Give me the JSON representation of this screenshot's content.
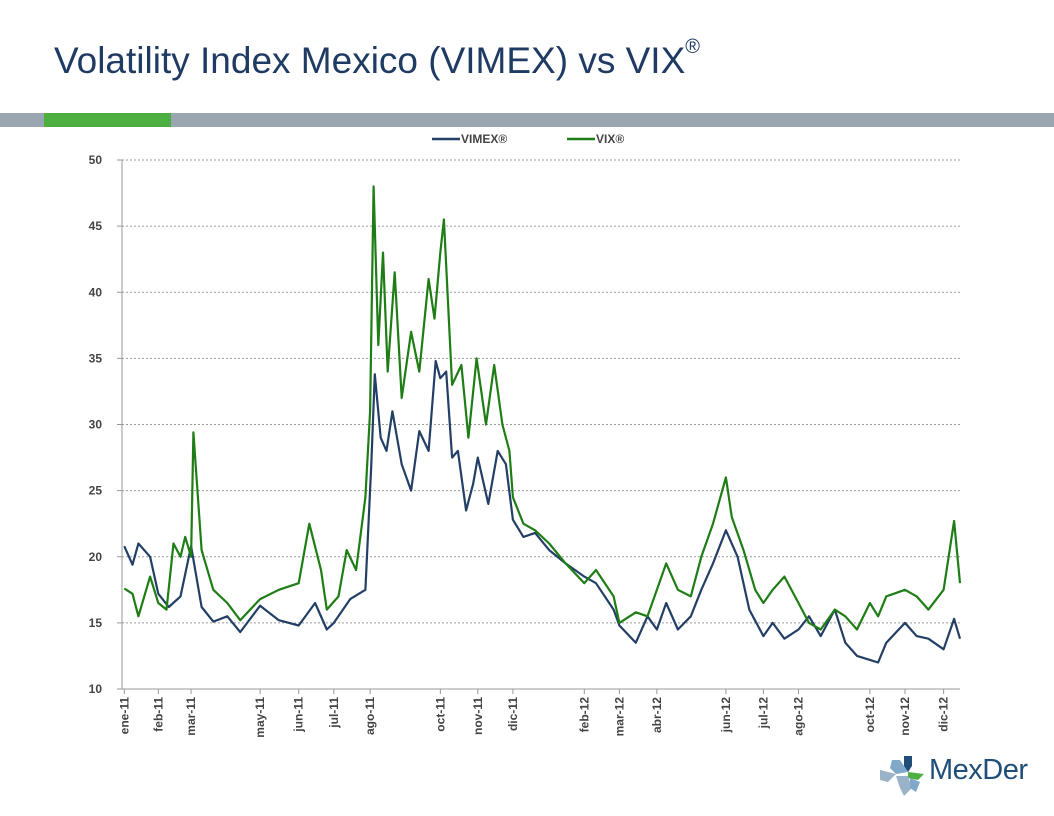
{
  "slide": {
    "title_main": "Volatility Index Mexico (VIMEX) vs VIX",
    "title_sup": "®",
    "logo_text": "MexDer"
  },
  "colors": {
    "title": "#1f3b63",
    "band": "#9aa7b2",
    "band_accent": "#4caf3f",
    "vimex": "#243f66",
    "vix": "#1e7d14"
  },
  "chart_data": {
    "type": "line",
    "title": "",
    "xlabel": "",
    "ylabel": "",
    "ylim": [
      10,
      50
    ],
    "yticks": [
      10,
      15,
      20,
      25,
      30,
      35,
      40,
      45,
      50
    ],
    "grid": true,
    "legend_position": "top-center",
    "xlim": [
      "2011-01",
      "2012-12"
    ],
    "x_tick_labels": [
      "ene-11",
      "feb-11",
      "mar-11",
      "may-11",
      "jun-11",
      "jul-11",
      "ago-11",
      "oct-11",
      "nov-11",
      "dic-11",
      "feb-12",
      "mar-12",
      "abr-12",
      "jun-12",
      "jul-12",
      "ago-12",
      "oct-12",
      "nov-12",
      "dic-12"
    ],
    "x_tick_dates": [
      "2011-01-03",
      "2011-02-01",
      "2011-03-01",
      "2011-04-29",
      "2011-06-01",
      "2011-07-01",
      "2011-08-01",
      "2011-09-30",
      "2011-11-01",
      "2011-12-01",
      "2012-01-31",
      "2012-03-01",
      "2012-04-02",
      "2012-05-31",
      "2012-07-02",
      "2012-08-01",
      "2012-10-01",
      "2012-10-31",
      "2012-12-03"
    ],
    "series": [
      {
        "name": "VIMEX®",
        "color": "#243f66",
        "points": [
          [
            "2011-01-03",
            20.8
          ],
          [
            "2011-01-10",
            19.4
          ],
          [
            "2011-01-15",
            21.0
          ],
          [
            "2011-01-25",
            20.0
          ],
          [
            "2011-02-01",
            17.2
          ],
          [
            "2011-02-10",
            16.2
          ],
          [
            "2011-02-20",
            17.0
          ],
          [
            "2011-03-01",
            20.8
          ],
          [
            "2011-03-10",
            16.2
          ],
          [
            "2011-03-20",
            15.1
          ],
          [
            "2011-04-01",
            15.5
          ],
          [
            "2011-04-12",
            14.3
          ],
          [
            "2011-04-29",
            16.3
          ],
          [
            "2011-05-15",
            15.2
          ],
          [
            "2011-06-01",
            14.8
          ],
          [
            "2011-06-15",
            16.5
          ],
          [
            "2011-06-25",
            14.5
          ],
          [
            "2011-07-01",
            15.0
          ],
          [
            "2011-07-15",
            16.8
          ],
          [
            "2011-07-28",
            17.5
          ],
          [
            "2011-08-02",
            27.0
          ],
          [
            "2011-08-05",
            33.8
          ],
          [
            "2011-08-10",
            29.0
          ],
          [
            "2011-08-15",
            28.0
          ],
          [
            "2011-08-20",
            31.0
          ],
          [
            "2011-08-28",
            27.0
          ],
          [
            "2011-09-05",
            25.0
          ],
          [
            "2011-09-12",
            29.5
          ],
          [
            "2011-09-20",
            28.0
          ],
          [
            "2011-09-26",
            34.8
          ],
          [
            "2011-09-30",
            33.5
          ],
          [
            "2011-10-05",
            34.0
          ],
          [
            "2011-10-10",
            27.5
          ],
          [
            "2011-10-15",
            28.0
          ],
          [
            "2011-10-22",
            23.5
          ],
          [
            "2011-10-28",
            25.5
          ],
          [
            "2011-11-01",
            27.5
          ],
          [
            "2011-11-10",
            24.0
          ],
          [
            "2011-11-18",
            28.0
          ],
          [
            "2011-11-25",
            27.0
          ],
          [
            "2011-12-01",
            22.8
          ],
          [
            "2011-12-10",
            21.5
          ],
          [
            "2011-12-20",
            21.8
          ],
          [
            "2012-01-01",
            20.5
          ],
          [
            "2012-01-15",
            19.5
          ],
          [
            "2012-01-31",
            18.5
          ],
          [
            "2012-02-10",
            18.0
          ],
          [
            "2012-02-25",
            16.0
          ],
          [
            "2012-03-01",
            14.8
          ],
          [
            "2012-03-15",
            13.5
          ],
          [
            "2012-03-25",
            15.5
          ],
          [
            "2012-04-02",
            14.5
          ],
          [
            "2012-04-10",
            16.5
          ],
          [
            "2012-04-20",
            14.5
          ],
          [
            "2012-05-01",
            15.5
          ],
          [
            "2012-05-10",
            17.5
          ],
          [
            "2012-05-20",
            19.5
          ],
          [
            "2012-05-31",
            22.0
          ],
          [
            "2012-06-10",
            20.0
          ],
          [
            "2012-06-20",
            16.0
          ],
          [
            "2012-07-02",
            14.0
          ],
          [
            "2012-07-10",
            15.0
          ],
          [
            "2012-07-20",
            13.8
          ],
          [
            "2012-08-01",
            14.5
          ],
          [
            "2012-08-10",
            15.5
          ],
          [
            "2012-08-20",
            14.0
          ],
          [
            "2012-09-01",
            16.0
          ],
          [
            "2012-09-10",
            13.5
          ],
          [
            "2012-09-20",
            12.5
          ],
          [
            "2012-10-01",
            12.2
          ],
          [
            "2012-10-08",
            12.0
          ],
          [
            "2012-10-15",
            13.5
          ],
          [
            "2012-10-31",
            15.0
          ],
          [
            "2012-11-10",
            14.0
          ],
          [
            "2012-11-20",
            13.8
          ],
          [
            "2012-12-03",
            13.0
          ],
          [
            "2012-12-12",
            15.3
          ],
          [
            "2012-12-17",
            13.8
          ]
        ]
      },
      {
        "name": "VIX®",
        "color": "#1e7d14",
        "points": [
          [
            "2011-01-03",
            17.6
          ],
          [
            "2011-01-10",
            17.2
          ],
          [
            "2011-01-15",
            15.5
          ],
          [
            "2011-01-25",
            18.5
          ],
          [
            "2011-02-01",
            16.5
          ],
          [
            "2011-02-08",
            16.0
          ],
          [
            "2011-02-14",
            21.0
          ],
          [
            "2011-02-20",
            20.0
          ],
          [
            "2011-02-24",
            21.5
          ],
          [
            "2011-03-01",
            20.0
          ],
          [
            "2011-03-03",
            29.4
          ],
          [
            "2011-03-10",
            20.5
          ],
          [
            "2011-03-20",
            17.5
          ],
          [
            "2011-04-01",
            16.5
          ],
          [
            "2011-04-12",
            15.2
          ],
          [
            "2011-04-29",
            16.8
          ],
          [
            "2011-05-15",
            17.5
          ],
          [
            "2011-06-01",
            18.0
          ],
          [
            "2011-06-10",
            22.5
          ],
          [
            "2011-06-20",
            19.0
          ],
          [
            "2011-06-25",
            16.0
          ],
          [
            "2011-07-05",
            17.0
          ],
          [
            "2011-07-12",
            20.5
          ],
          [
            "2011-07-20",
            19.0
          ],
          [
            "2011-07-28",
            24.5
          ],
          [
            "2011-08-01",
            31.0
          ],
          [
            "2011-08-04",
            48.0
          ],
          [
            "2011-08-08",
            36.0
          ],
          [
            "2011-08-12",
            43.0
          ],
          [
            "2011-08-16",
            34.0
          ],
          [
            "2011-08-22",
            41.5
          ],
          [
            "2011-08-28",
            32.0
          ],
          [
            "2011-09-05",
            37.0
          ],
          [
            "2011-09-12",
            34.0
          ],
          [
            "2011-09-20",
            41.0
          ],
          [
            "2011-09-25",
            38.0
          ],
          [
            "2011-09-30",
            43.0
          ],
          [
            "2011-10-03",
            45.5
          ],
          [
            "2011-10-10",
            33.0
          ],
          [
            "2011-10-18",
            34.5
          ],
          [
            "2011-10-24",
            29.0
          ],
          [
            "2011-10-31",
            35.0
          ],
          [
            "2011-11-08",
            30.0
          ],
          [
            "2011-11-15",
            34.5
          ],
          [
            "2011-11-22",
            30.0
          ],
          [
            "2011-11-28",
            28.0
          ],
          [
            "2011-12-01",
            24.5
          ],
          [
            "2011-12-10",
            22.5
          ],
          [
            "2011-12-20",
            22.0
          ],
          [
            "2012-01-01",
            21.0
          ],
          [
            "2012-01-15",
            19.5
          ],
          [
            "2012-01-31",
            18.0
          ],
          [
            "2012-02-10",
            19.0
          ],
          [
            "2012-02-25",
            17.0
          ],
          [
            "2012-03-01",
            15.0
          ],
          [
            "2012-03-15",
            15.8
          ],
          [
            "2012-03-25",
            15.5
          ],
          [
            "2012-04-02",
            17.5
          ],
          [
            "2012-04-10",
            19.5
          ],
          [
            "2012-04-20",
            17.5
          ],
          [
            "2012-05-01",
            17.0
          ],
          [
            "2012-05-10",
            20.0
          ],
          [
            "2012-05-20",
            22.5
          ],
          [
            "2012-05-31",
            26.0
          ],
          [
            "2012-06-05",
            23.0
          ],
          [
            "2012-06-15",
            20.5
          ],
          [
            "2012-06-25",
            17.5
          ],
          [
            "2012-07-02",
            16.5
          ],
          [
            "2012-07-10",
            17.5
          ],
          [
            "2012-07-20",
            18.5
          ],
          [
            "2012-08-01",
            16.5
          ],
          [
            "2012-08-10",
            15.0
          ],
          [
            "2012-08-20",
            14.5
          ],
          [
            "2012-09-01",
            16.0
          ],
          [
            "2012-09-10",
            15.5
          ],
          [
            "2012-09-20",
            14.5
          ],
          [
            "2012-10-01",
            16.5
          ],
          [
            "2012-10-08",
            15.5
          ],
          [
            "2012-10-15",
            17.0
          ],
          [
            "2012-10-31",
            17.5
          ],
          [
            "2012-11-10",
            17.0
          ],
          [
            "2012-11-20",
            16.0
          ],
          [
            "2012-12-03",
            17.5
          ],
          [
            "2012-12-12",
            22.7
          ],
          [
            "2012-12-17",
            18.0
          ]
        ]
      }
    ]
  }
}
